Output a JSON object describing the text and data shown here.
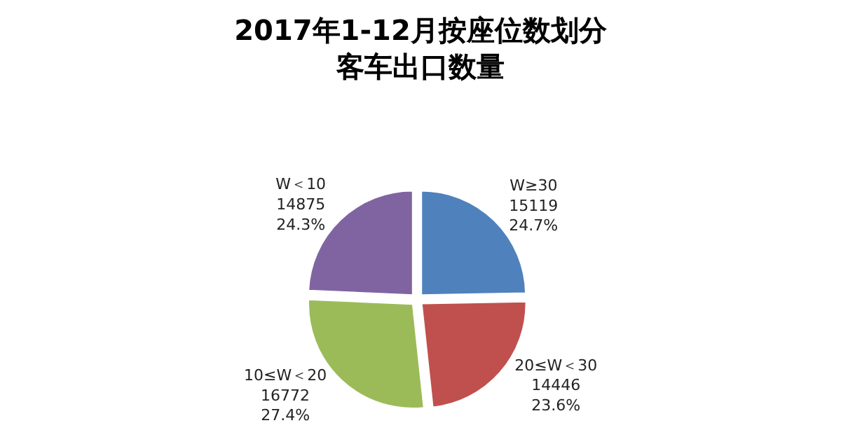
{
  "chart_data": {
    "type": "pie",
    "title": "2017年1-12月按座位数划分客车出口数量",
    "categories": [
      "W≥30",
      "20≤W＜30",
      "10≤W＜20",
      "W＜10"
    ],
    "values": [
      15119,
      14446,
      16772,
      14875
    ],
    "value_labels": [
      "15119\n24.7%",
      "14446\n23.6%",
      "16772\n27.4%",
      "14875\n24.3%"
    ],
    "colors": [
      "#4f81bd",
      "#c0504d",
      "#9bbb59",
      "#8064a2"
    ],
    "legend": false
  }
}
